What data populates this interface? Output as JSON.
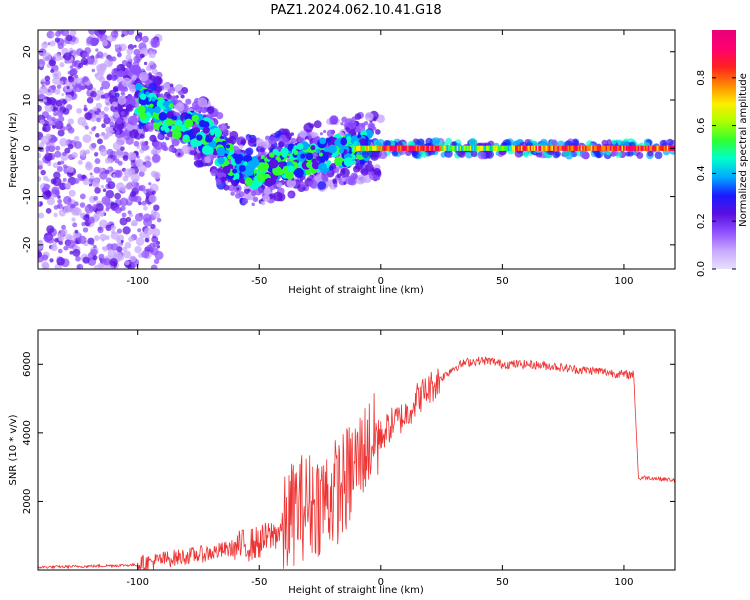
{
  "title": "PAZ1.2024.062.10.41.G18",
  "chart_data": [
    {
      "type": "heatmap",
      "xlabel": "Height of straight line (km)",
      "ylabel": "Frequency (Hz)",
      "xlim": [
        -141,
        121
      ],
      "ylim": [
        -25,
        24.5
      ],
      "xticks": [
        -100,
        -50,
        0,
        50,
        100
      ],
      "yticks": [
        -20,
        -10,
        0,
        10,
        20
      ],
      "grid": false,
      "colorbar": {
        "label": "Normalized spectral amplitude",
        "range": [
          0,
          1
        ],
        "ticks": [
          0.0,
          0.2,
          0.4,
          0.6,
          0.8
        ],
        "colormap": [
          "#e8e0ff",
          "#c8a8ff",
          "#9050ff",
          "#5a10e0",
          "#1a1aff",
          "#00aaff",
          "#00ffcc",
          "#30ff30",
          "#aaff00",
          "#ffee00",
          "#ff8800",
          "#ff2020",
          "#ff0070",
          "#e8007a"
        ]
      },
      "ridge_frequency_hz": [
        {
          "x": -100,
          "y": 10
        },
        {
          "x": -90,
          "y": 7
        },
        {
          "x": -80,
          "y": 5
        },
        {
          "x": -70,
          "y": 2
        },
        {
          "x": -60,
          "y": -4
        },
        {
          "x": -50,
          "y": -5
        },
        {
          "x": -40,
          "y": -3
        },
        {
          "x": -30,
          "y": -2
        },
        {
          "x": -20,
          "y": -1
        },
        {
          "x": -10,
          "y": 0
        },
        {
          "x": 0,
          "y": 0
        },
        {
          "x": 50,
          "y": 0
        },
        {
          "x": 120,
          "y": 0
        }
      ]
    },
    {
      "type": "line",
      "xlabel": "Height of straight line (km)",
      "ylabel": "SNR (10 * v/v)",
      "xlim": [
        -141,
        121
      ],
      "ylim": [
        0,
        7000
      ],
      "xticks": [
        -100,
        -50,
        0,
        50,
        100
      ],
      "yticks": [
        2000,
        4000,
        6000
      ],
      "grid": false,
      "series": [
        {
          "color": "#ee3333",
          "x": [
            -141,
            -120,
            -100,
            -90,
            -80,
            -70,
            -60,
            -50,
            -40,
            -35,
            -30,
            -25,
            -20,
            -15,
            -10,
            -8,
            -5,
            0,
            5,
            10,
            15,
            20,
            25,
            30,
            35,
            40,
            45,
            50,
            60,
            70,
            80,
            90,
            100,
            104,
            106,
            108,
            112,
            121
          ],
          "y": [
            80,
            110,
            150,
            300,
            400,
            500,
            650,
            800,
            1200,
            1800,
            1900,
            2000,
            2200,
            2500,
            3100,
            3400,
            3700,
            3900,
            4300,
            4500,
            5000,
            5300,
            5600,
            5900,
            6050,
            6100,
            6100,
            6000,
            6000,
            5950,
            5850,
            5800,
            5700,
            5700,
            2650,
            2700,
            2680,
            2620
          ]
        }
      ]
    }
  ]
}
